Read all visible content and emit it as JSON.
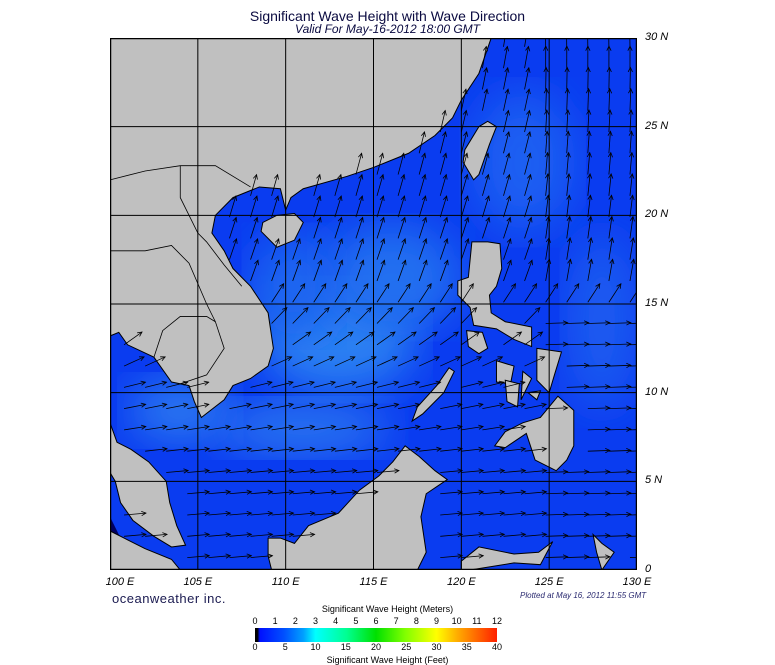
{
  "title": "Significant Wave Height with Wave Direction",
  "subtitle": "Valid For May-16-2012 18:00 GMT",
  "map": {
    "lon_range": [
      100,
      130
    ],
    "lat_range": [
      0,
      30
    ],
    "lat_labels": [
      "30 N",
      "25 N",
      "20 N",
      "15 N",
      "10 N",
      "5 N",
      "0"
    ],
    "lon_labels": [
      "100 E",
      "105 E",
      "110 E",
      "115 E",
      "120 E",
      "125 E",
      "130 E"
    ],
    "colors": {
      "land": "#c0c0c0",
      "ocean_low": "#0a3cf0",
      "ocean_mid": "#2a7af0",
      "arrow": "#000000"
    }
  },
  "footer": {
    "brand": "oceanweather inc.",
    "plotted": "Plotted at May 16, 2012 11:55 GMT"
  },
  "colorbar": {
    "title_meters": "Significant Wave Height (Meters)",
    "title_feet": "Significant Wave Height (Feet)",
    "meters_ticks": [
      "0",
      "1",
      "2",
      "3",
      "4",
      "5",
      "6",
      "7",
      "8",
      "9",
      "10",
      "11",
      "12"
    ],
    "feet_ticks": [
      "0",
      "5",
      "10",
      "15",
      "20",
      "25",
      "30",
      "35",
      "40"
    ]
  }
}
